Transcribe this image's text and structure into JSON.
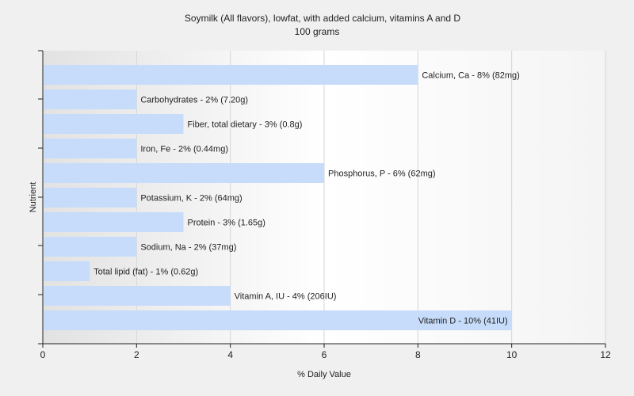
{
  "chart_data": {
    "type": "bar",
    "orientation": "horizontal",
    "title": "Soymilk (All flavors), lowfat, with added calcium, vitamins A and D",
    "subtitle": "100 grams",
    "xlabel": "% Daily Value",
    "ylabel": "Nutrient",
    "xlim": [
      0,
      12
    ],
    "xticks": [
      "0",
      "2",
      "4",
      "6",
      "8",
      "10",
      "12"
    ],
    "grid": true,
    "bar_color": "#c6dcfa",
    "categories": [
      "Calcium, Ca",
      "Carbohydrates",
      "Fiber, total dietary",
      "Iron, Fe",
      "Phosphorus, P",
      "Potassium, K",
      "Protein",
      "Sodium, Na",
      "Total lipid (fat)",
      "Vitamin A, IU",
      "Vitamin D"
    ],
    "values": [
      8,
      2,
      3,
      2,
      6,
      2,
      3,
      2,
      1,
      4,
      10
    ],
    "labels": [
      "Calcium, Ca - 8% (82mg)",
      "Carbohydrates - 2% (7.20g)",
      "Fiber, total dietary - 3% (0.8g)",
      "Iron, Fe - 2% (0.44mg)",
      "Phosphorus, P - 6% (62mg)",
      "Potassium, K - 2% (64mg)",
      "Protein - 3% (1.65g)",
      "Sodium, Na - 2% (37mg)",
      "Total lipid (fat) - 1% (0.62g)",
      "Vitamin A, IU - 4% (206IU)",
      "Vitamin D - 10% (41IU)"
    ]
  }
}
